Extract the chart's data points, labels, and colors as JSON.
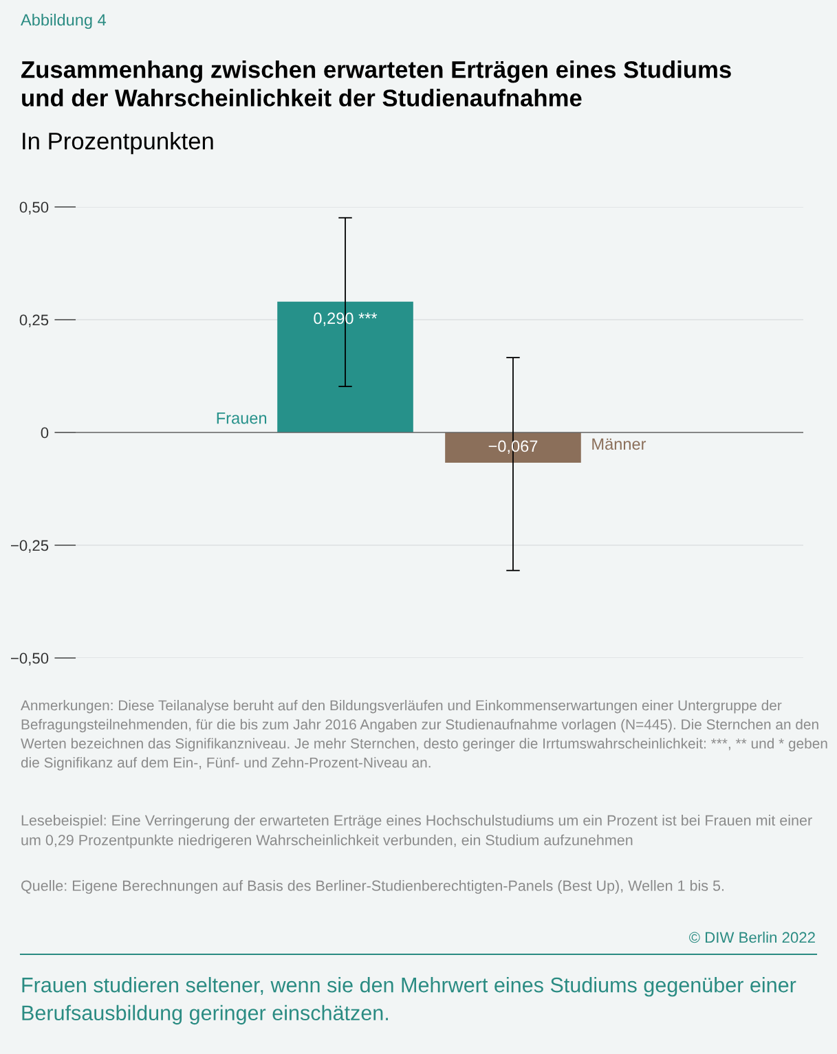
{
  "chart_data": {
    "type": "bar",
    "title": "Zusammenhang zwischen erwarteten Erträgen eines Studiums\nund der Wahrscheinlichkeit der Studienaufnahme",
    "subtitle": "In Prozentpunkten",
    "categories": [
      "Frauen",
      "Männer"
    ],
    "values": [
      0.29,
      -0.067
    ],
    "colors": [
      "#26918a",
      "#8b6f5a"
    ],
    "errors": [
      [
        0.102,
        0.476
      ],
      [
        -0.306,
        0.166
      ]
    ],
    "value_labels": [
      "0,290 ***",
      "−0,067"
    ],
    "ylim": [
      -0.5,
      0.5
    ],
    "yticks": [
      {
        "value": 0.5,
        "label": "0,50"
      },
      {
        "value": 0.25,
        "label": "0,25"
      },
      {
        "value": 0,
        "label": "0"
      },
      {
        "value": -0.25,
        "label": "−0,25"
      },
      {
        "value": -0.5,
        "label": "−0,50"
      }
    ],
    "grid": "y",
    "annotations": [
      "Abbildung 4",
      "Anmerkungen: Diese Teilanalyse beruht auf den Bildungsverläufen und Einkommenserwartungen einer Untergruppe der Befragungsteilnehmenden, für die bis zum Jahr 2016 Angaben zur Studienaufnahme vorlagen (N=445). Die Sternchen an den Werten bezeichnen das Signifikanzniveau. Je mehr Sternchen, desto geringer die Irrtumswahrscheinlichkeit: ***, ** und * geben die Signifikanz auf dem Ein-, Fünf- und Zehn-Prozent-Niveau an.",
      "Lesebeispiel: Eine Verringerung der erwarteten Erträge eines Hochschulstudiums um ein Prozent ist bei Frauen mit einer um 0,29 Prozentpunkte niedrigeren Wahrscheinlichkeit verbunden, ein Studium aufzunehmen",
      "Quelle: Eigene Berechnungen auf Basis des Berliner-Studienberechtigten-Panels (Best Up), Wellen 1 bis 5.",
      "© DIW Berlin 2022",
      "Frauen studieren seltener, wenn sie den Mehrwert eines Studiums gegenüber einer Berufsausbildung geringer einschätzen."
    ]
  }
}
